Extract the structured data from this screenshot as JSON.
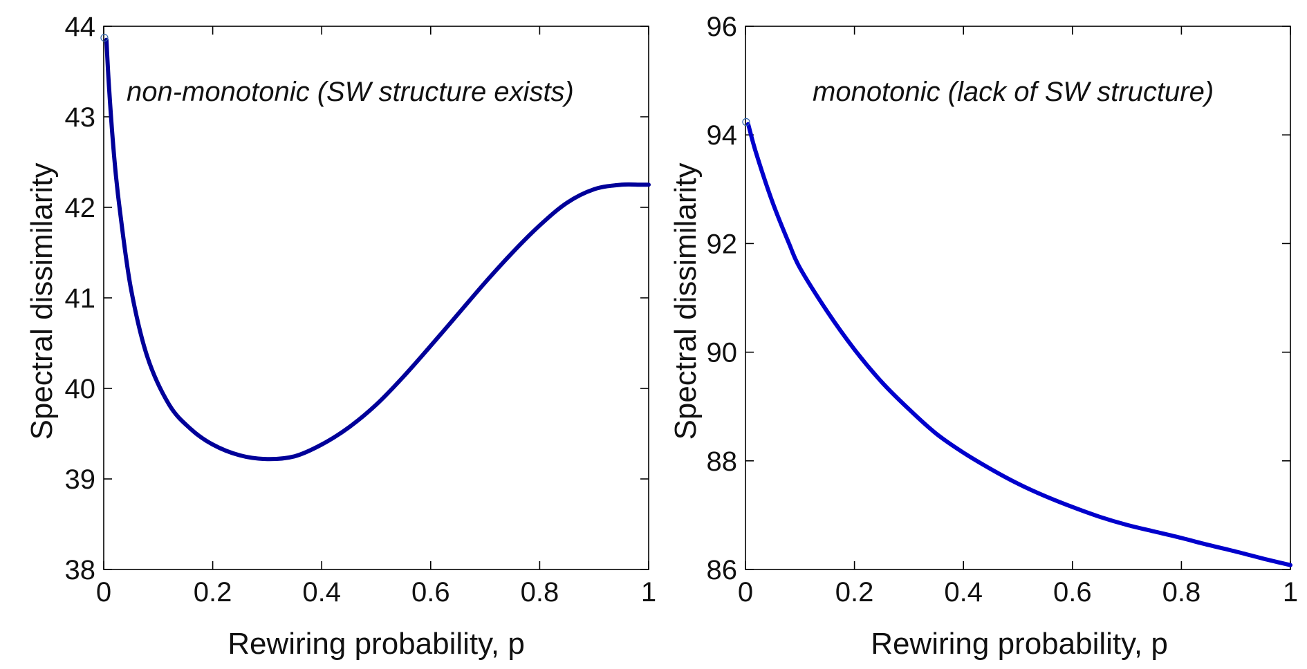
{
  "chart_data": [
    {
      "type": "line",
      "xlabel": "Rewiring probability, p",
      "ylabel": "Spectral dissimilarity",
      "annotation": "non-monotonic (SW structure exists)",
      "xlim": [
        0,
        1
      ],
      "ylim": [
        38,
        44
      ],
      "xticks": [
        0,
        0.2,
        0.4,
        0.6,
        0.8,
        1
      ],
      "xtick_labels": [
        "0",
        "0.2",
        "0.4",
        "0.6",
        "0.8",
        "1"
      ],
      "yticks": [
        38,
        39,
        40,
        41,
        42,
        43,
        44
      ],
      "ytick_labels": [
        "38",
        "39",
        "40",
        "41",
        "42",
        "43",
        "44"
      ],
      "color": "#000099",
      "series": [
        {
          "name": "spectral dissimilarity",
          "x": [
            0.005,
            0.01,
            0.02,
            0.03,
            0.05,
            0.08,
            0.12,
            0.16,
            0.2,
            0.25,
            0.3,
            0.35,
            0.4,
            0.45,
            0.5,
            0.55,
            0.6,
            0.65,
            0.7,
            0.75,
            0.8,
            0.85,
            0.9,
            0.95,
            0.985,
            1.0
          ],
          "y": [
            43.85,
            43.3,
            42.5,
            41.95,
            41.1,
            40.35,
            39.82,
            39.55,
            39.38,
            39.26,
            39.22,
            39.25,
            39.38,
            39.57,
            39.82,
            40.13,
            40.47,
            40.82,
            41.17,
            41.5,
            41.8,
            42.05,
            42.2,
            42.25,
            42.25,
            42.25
          ]
        }
      ]
    },
    {
      "type": "line",
      "xlabel": "Rewiring probability, p",
      "ylabel": "Spectral dissimilarity",
      "annotation": "monotonic (lack of SW structure)",
      "xlim": [
        0,
        1
      ],
      "ylim": [
        86,
        96
      ],
      "xticks": [
        0,
        0.2,
        0.4,
        0.6,
        0.8,
        1
      ],
      "xtick_labels": [
        "0",
        "0.2",
        "0.4",
        "0.6",
        "0.8",
        "1"
      ],
      "yticks": [
        86,
        88,
        90,
        92,
        94,
        96
      ],
      "ytick_labels": [
        "86",
        "88",
        "90",
        "92",
        "94",
        "96"
      ],
      "color": "#0000cc",
      "series": [
        {
          "name": "spectral dissimilarity",
          "x": [
            0.005,
            0.02,
            0.05,
            0.08,
            0.1,
            0.15,
            0.2,
            0.25,
            0.3,
            0.35,
            0.4,
            0.45,
            0.5,
            0.55,
            0.6,
            0.65,
            0.7,
            0.75,
            0.8,
            0.85,
            0.9,
            0.95,
            1.0
          ],
          "y": [
            94.2,
            93.65,
            92.75,
            92.0,
            91.55,
            90.75,
            90.05,
            89.45,
            88.95,
            88.5,
            88.15,
            87.85,
            87.58,
            87.35,
            87.15,
            86.97,
            86.82,
            86.7,
            86.58,
            86.45,
            86.33,
            86.2,
            86.08
          ]
        }
      ]
    }
  ]
}
